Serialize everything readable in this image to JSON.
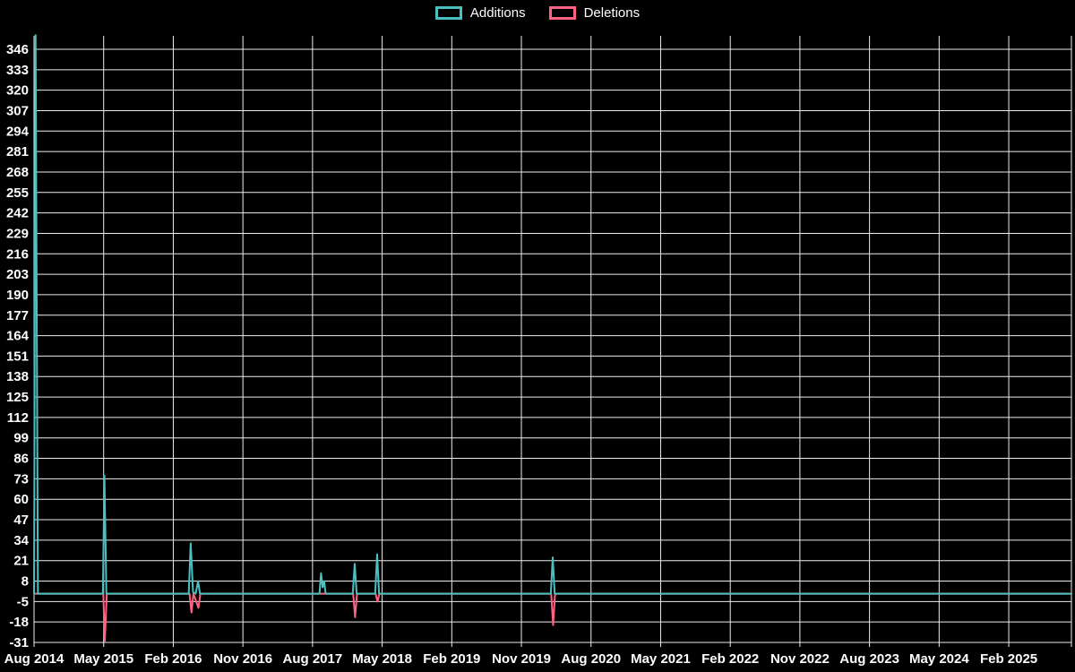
{
  "colors": {
    "background": "#000000",
    "grid": "#ededed",
    "text": "#ffffff",
    "additions": "#4bc0c0",
    "deletions": "#ff6384"
  },
  "legend": {
    "position": "top-center"
  },
  "chart_data": {
    "type": "line",
    "title": "",
    "xlabel": "",
    "ylabel": "",
    "grid": true,
    "legend_position": "top",
    "x_axis": {
      "tick_labels": [
        "Aug 2014",
        "May 2015",
        "Feb 2016",
        "Nov 2016",
        "Aug 2017",
        "May 2018",
        "Feb 2019",
        "Nov 2019",
        "Aug 2020",
        "May 2021",
        "Feb 2022",
        "Nov 2022",
        "Aug 2023",
        "May 2024",
        "Feb 2025"
      ],
      "tick_month_positions": [
        0,
        9,
        18,
        27,
        36,
        45,
        54,
        63,
        72,
        81,
        90,
        99,
        108,
        117,
        126
      ],
      "range_months": [
        0,
        134.1
      ]
    },
    "y_axis": {
      "ticks": [
        346,
        333,
        320,
        307,
        294,
        281,
        268,
        255,
        242,
        229,
        216,
        203,
        190,
        177,
        164,
        151,
        138,
        125,
        112,
        99,
        86,
        73,
        60,
        47,
        34,
        21,
        8,
        -5,
        -18,
        -31
      ],
      "range": [
        -31,
        346
      ],
      "tick_step": 13
    },
    "series": [
      {
        "name": "Additions",
        "color": "#4bc0c0",
        "points": [
          [
            0,
            0
          ],
          [
            0.2,
            355
          ],
          [
            0.5,
            0
          ],
          [
            8.9,
            0
          ],
          [
            9.1,
            75
          ],
          [
            9.35,
            0
          ],
          [
            20.0,
            0
          ],
          [
            20.25,
            32
          ],
          [
            20.55,
            1
          ],
          [
            20.9,
            0
          ],
          [
            21.2,
            8
          ],
          [
            21.45,
            0
          ],
          [
            36.9,
            0
          ],
          [
            37.1,
            13
          ],
          [
            37.3,
            4
          ],
          [
            37.5,
            8
          ],
          [
            37.7,
            0
          ],
          [
            41.2,
            0
          ],
          [
            41.45,
            19
          ],
          [
            41.7,
            0
          ],
          [
            44.1,
            0
          ],
          [
            44.35,
            25
          ],
          [
            44.6,
            0
          ],
          [
            66.8,
            0
          ],
          [
            67.05,
            23
          ],
          [
            67.3,
            0
          ],
          [
            134.1,
            0
          ]
        ]
      },
      {
        "name": "Deletions",
        "color": "#ff6384",
        "points": [
          [
            0,
            0
          ],
          [
            8.95,
            0
          ],
          [
            9.15,
            -30
          ],
          [
            9.4,
            0
          ],
          [
            20.1,
            0
          ],
          [
            20.35,
            -12
          ],
          [
            20.6,
            0
          ],
          [
            21.25,
            -9
          ],
          [
            21.5,
            0
          ],
          [
            41.25,
            0
          ],
          [
            41.5,
            -15
          ],
          [
            41.75,
            0
          ],
          [
            44.15,
            0
          ],
          [
            44.4,
            -5
          ],
          [
            44.65,
            0
          ],
          [
            66.85,
            0
          ],
          [
            67.1,
            -20
          ],
          [
            67.35,
            0
          ],
          [
            134.1,
            0
          ]
        ]
      }
    ]
  }
}
